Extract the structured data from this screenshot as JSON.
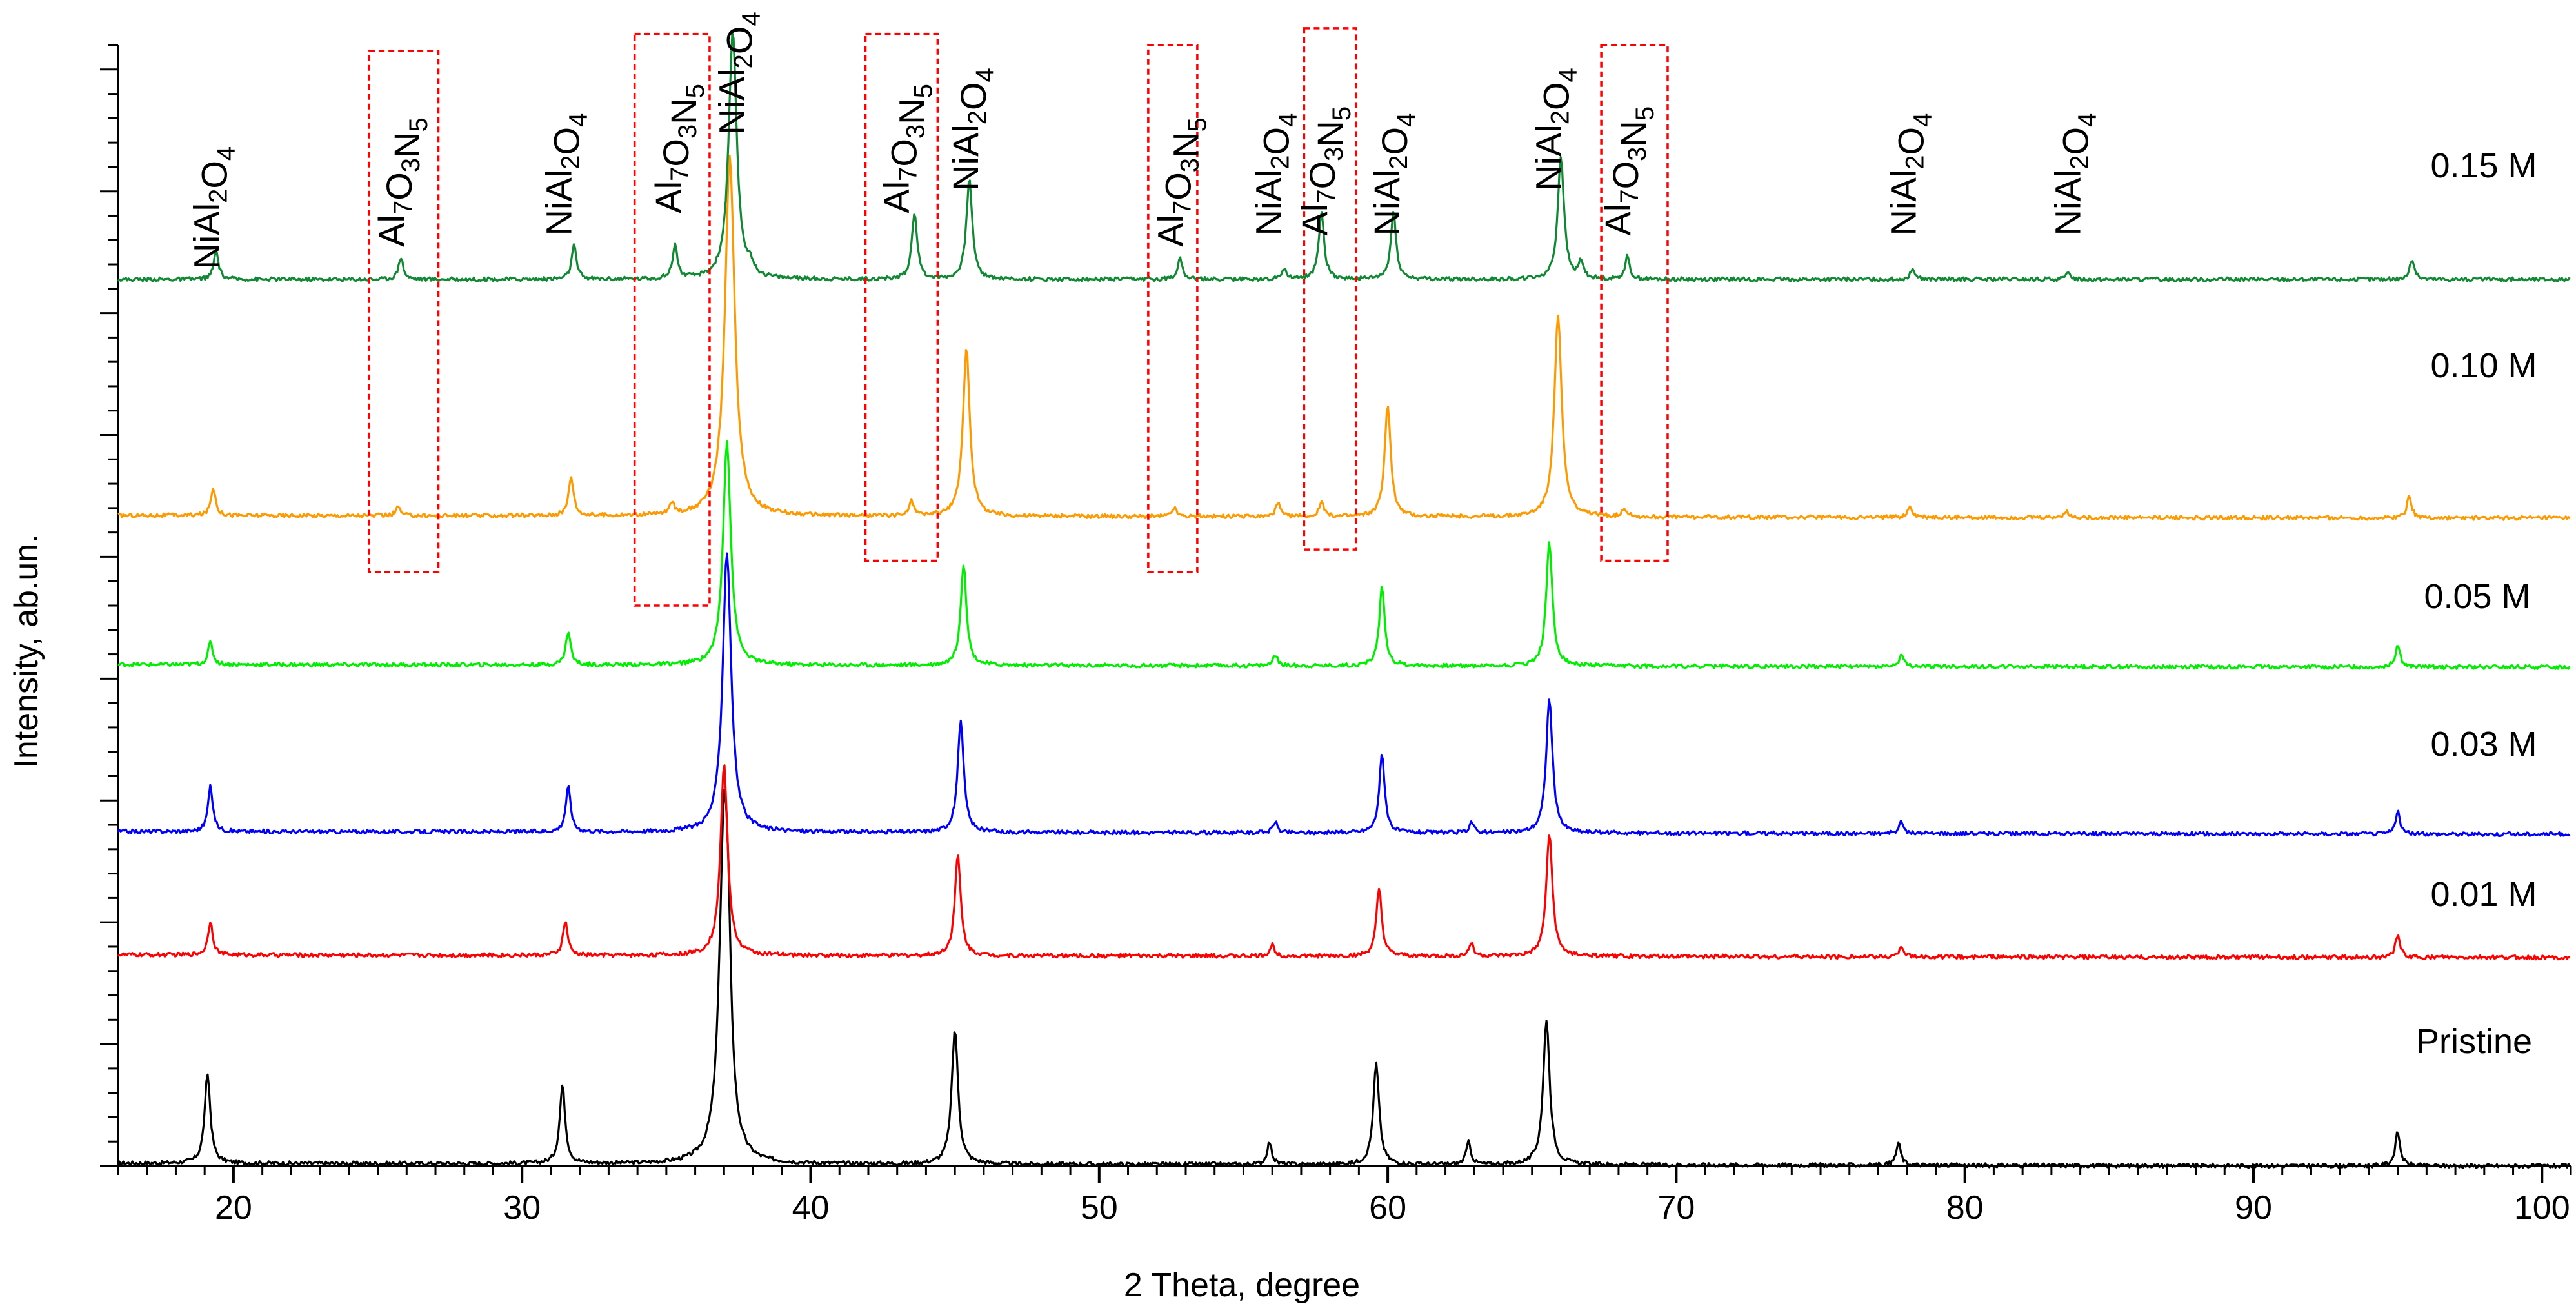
{
  "chart_data": {
    "type": "line",
    "title": "",
    "xlabel": "2 Theta, degree",
    "ylabel": "Intensity, ab.un.",
    "xlim": [
      16,
      101
    ],
    "ylim": [
      0,
      100
    ],
    "grid": false,
    "x_ticks": [
      "20",
      "30",
      "40",
      "50",
      "60",
      "70",
      "80",
      "90",
      "100"
    ],
    "series": [
      {
        "name": "Pristine",
        "color": "#000000",
        "baseline": 0,
        "peaks": [
          [
            19.1,
            8
          ],
          [
            31.4,
            7
          ],
          [
            37.0,
            30
          ],
          [
            37.15,
            8
          ],
          [
            45.0,
            12
          ],
          [
            55.9,
            2
          ],
          [
            59.6,
            9
          ],
          [
            62.8,
            2
          ],
          [
            65.5,
            13
          ],
          [
            77.7,
            2
          ],
          [
            95.0,
            3
          ]
        ]
      },
      {
        "name": "0.01 M",
        "color": "#ff0000",
        "baseline": 18.6,
        "peaks": [
          [
            19.2,
            3
          ],
          [
            31.5,
            3
          ],
          [
            37.0,
            17
          ],
          [
            45.1,
            9
          ],
          [
            56.0,
            1
          ],
          [
            59.7,
            6
          ],
          [
            62.9,
            1.2
          ],
          [
            65.6,
            11
          ],
          [
            77.8,
            1
          ],
          [
            95.0,
            2
          ]
        ]
      },
      {
        "name": "0.03 M",
        "color": "#0000ff",
        "baseline": 29.6,
        "peaks": [
          [
            19.2,
            4
          ],
          [
            31.6,
            4
          ],
          [
            37.1,
            25
          ],
          [
            45.2,
            10
          ],
          [
            56.1,
            1
          ],
          [
            59.8,
            7
          ],
          [
            62.9,
            1
          ],
          [
            65.6,
            12
          ],
          [
            77.8,
            1
          ],
          [
            95.0,
            2
          ]
        ]
      },
      {
        "name": "0.05 M",
        "color": "#00ee00",
        "baseline": 44.5,
        "peaks": [
          [
            19.2,
            2
          ],
          [
            31.6,
            3
          ],
          [
            37.1,
            20
          ],
          [
            45.3,
            9
          ],
          [
            56.1,
            1
          ],
          [
            59.8,
            7
          ],
          [
            65.6,
            11
          ],
          [
            77.8,
            1
          ],
          [
            95.0,
            2
          ]
        ]
      },
      {
        "name": "0.10 M",
        "color": "#ff9900",
        "baseline": 57.8,
        "peaks": [
          [
            19.3,
            2.5
          ],
          [
            25.7,
            0.8
          ],
          [
            31.7,
            3.5
          ],
          [
            35.2,
            1
          ],
          [
            37.2,
            32
          ],
          [
            43.5,
            1.3
          ],
          [
            45.4,
            15
          ],
          [
            52.6,
            0.8
          ],
          [
            56.2,
            1.2
          ],
          [
            57.7,
            1.3
          ],
          [
            60.0,
            10
          ],
          [
            65.9,
            18
          ],
          [
            68.2,
            0.8
          ],
          [
            78.1,
            1
          ],
          [
            83.5,
            0.6
          ],
          [
            95.4,
            2
          ]
        ]
      },
      {
        "name": "0.15 M",
        "color": "#118833",
        "baseline": 79.1,
        "peaks": [
          [
            19.4,
            2.5
          ],
          [
            25.8,
            2
          ],
          [
            31.8,
            3
          ],
          [
            35.3,
            3
          ],
          [
            37.3,
            22
          ],
          [
            37.9,
            1
          ],
          [
            43.6,
            6
          ],
          [
            45.5,
            9
          ],
          [
            52.8,
            2
          ],
          [
            56.4,
            1
          ],
          [
            57.7,
            6
          ],
          [
            60.2,
            6
          ],
          [
            66.0,
            11
          ],
          [
            66.7,
            1.5
          ],
          [
            68.3,
            2
          ],
          [
            78.2,
            1
          ],
          [
            83.6,
            0.6
          ],
          [
            95.5,
            1.8
          ]
        ]
      }
    ],
    "series_labels": [
      "0.15 M",
      "0.10 M",
      "0.05 M",
      "0.03 M",
      "0.01 M",
      "Pristine"
    ],
    "phase_annotations": [
      {
        "x": 19.5,
        "text": "NiAl2O4",
        "base": "NiAl",
        "sub1": "2",
        "mid": "O",
        "sub2": "4",
        "y": 80,
        "box": false
      },
      {
        "x": 25.9,
        "text": "Al7O3N5",
        "base": "Al",
        "sub1": "7",
        "mid": "O",
        "sub2": "3",
        "tail": "N",
        "sub3": "5",
        "y": 82,
        "box": true,
        "box_x": [
          24.7,
          27.1
        ],
        "box_y": [
          53,
          99.5
        ]
      },
      {
        "x": 31.7,
        "text": "NiAl2O4",
        "base": "NiAl",
        "sub1": "2",
        "mid": "O",
        "sub2": "4",
        "y": 83,
        "box": false
      },
      {
        "x": 35.5,
        "text": "Al7O3N5",
        "base": "Al",
        "sub1": "7",
        "mid": "O",
        "sub2": "3",
        "tail": "N",
        "sub3": "5",
        "y": 85,
        "box": true,
        "box_x": [
          33.9,
          36.5
        ],
        "box_y": [
          50,
          101
        ]
      },
      {
        "x": 37.7,
        "text": "NiAl2O4",
        "base": "NiAl",
        "sub1": "2",
        "mid": "O",
        "sub2": "4",
        "y": 92,
        "box": false
      },
      {
        "x": 43.4,
        "text": "Al7O3N5",
        "base": "Al",
        "sub1": "7",
        "mid": "O",
        "sub2": "3",
        "tail": "N",
        "sub3": "5",
        "y": 85,
        "box": true,
        "box_x": [
          41.9,
          44.4
        ],
        "box_y": [
          54,
          101
        ]
      },
      {
        "x": 45.8,
        "text": "NiAl2O4",
        "base": "NiAl",
        "sub1": "2",
        "mid": "O",
        "sub2": "4",
        "y": 87,
        "box": false
      },
      {
        "x": 52.9,
        "text": "Al7O3N5",
        "base": "Al",
        "sub1": "7",
        "mid": "O",
        "sub2": "3",
        "tail": "N",
        "sub3": "5",
        "y": 82,
        "box": true,
        "box_x": [
          51.7,
          53.4
        ],
        "box_y": [
          53,
          100
        ]
      },
      {
        "x": 56.3,
        "text": "NiAl2O4",
        "base": "NiAl",
        "sub1": "2",
        "mid": "O",
        "sub2": "4",
        "y": 83,
        "box": false
      },
      {
        "x": 57.9,
        "text": "Al7O3N5",
        "base": "Al",
        "sub1": "7",
        "mid": "O",
        "sub2": "3",
        "tail": "N",
        "sub3": "5",
        "y": 83,
        "box": true,
        "box_x": [
          57.1,
          58.9
        ],
        "box_y": [
          55,
          101.5
        ]
      },
      {
        "x": 60.4,
        "text": "NiAl2O4",
        "base": "NiAl",
        "sub1": "2",
        "mid": "O",
        "sub2": "4",
        "y": 83,
        "box": false
      },
      {
        "x": 66.0,
        "text": "NiAl2O4",
        "base": "NiAl",
        "sub1": "2",
        "mid": "O",
        "sub2": "4",
        "y": 87,
        "box": false
      },
      {
        "x": 68.4,
        "text": "Al7O3N5",
        "base": "Al",
        "sub1": "7",
        "mid": "O",
        "sub2": "3",
        "tail": "N",
        "sub3": "5",
        "y": 83,
        "box": true,
        "box_x": [
          67.4,
          69.7
        ],
        "box_y": [
          54,
          100
        ]
      },
      {
        "x": 78.3,
        "text": "NiAl2O4",
        "base": "NiAl",
        "sub1": "2",
        "mid": "O",
        "sub2": "4",
        "y": 83,
        "box": false
      },
      {
        "x": 84.0,
        "text": "NiAl2O4",
        "base": "NiAl",
        "sub1": "2",
        "mid": "O",
        "sub2": "4",
        "y": 83,
        "box": false
      }
    ]
  }
}
